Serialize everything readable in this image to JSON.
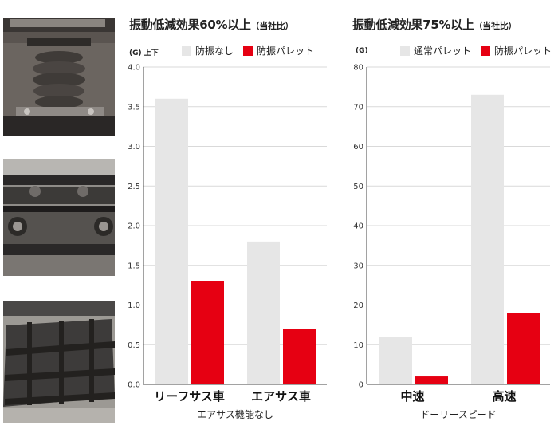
{
  "colors": {
    "baseline": "#e6e6e6",
    "accent": "#e60012",
    "grid": "#d9d9d9",
    "axis": "#444444"
  },
  "photos": [
    {
      "name": "air-suspension-photo"
    },
    {
      "name": "pallet-underside-photo"
    },
    {
      "name": "pallet-frames-photo"
    }
  ],
  "chart_data": [
    {
      "type": "bar",
      "title": "振動低減効果60%以上",
      "title_note": "（当社比）",
      "unit_label": "(G) 上下",
      "xlabel": "エアサス機能なし",
      "categories": [
        "リーフサス車",
        "エアサス車"
      ],
      "series": [
        {
          "name": "防振なし",
          "color": "#e6e6e6",
          "values": [
            3.6,
            1.8
          ]
        },
        {
          "name": "防振パレット",
          "color": "#e60012",
          "values": [
            1.3,
            0.7
          ]
        }
      ],
      "ylim": [
        0,
        4.0
      ],
      "yticks": [
        "0.0",
        "0.5",
        "1.0",
        "1.5",
        "2.0",
        "2.5",
        "3.0",
        "3.5",
        "4.0"
      ],
      "grid": true,
      "legend": "top"
    },
    {
      "type": "bar",
      "title": "振動低減効果75%以上",
      "title_note": "（当社比）",
      "unit_label": "(G)",
      "xlabel": "ドーリースピード",
      "categories": [
        "中速",
        "高速"
      ],
      "series": [
        {
          "name": "通常パレット",
          "color": "#e6e6e6",
          "values": [
            12,
            73
          ]
        },
        {
          "name": "防振パレット",
          "color": "#e60012",
          "values": [
            2,
            18
          ]
        }
      ],
      "ylim": [
        0,
        80
      ],
      "yticks": [
        "0",
        "10",
        "20",
        "30",
        "40",
        "50",
        "60",
        "70",
        "80"
      ],
      "grid": true,
      "legend": "top"
    }
  ]
}
